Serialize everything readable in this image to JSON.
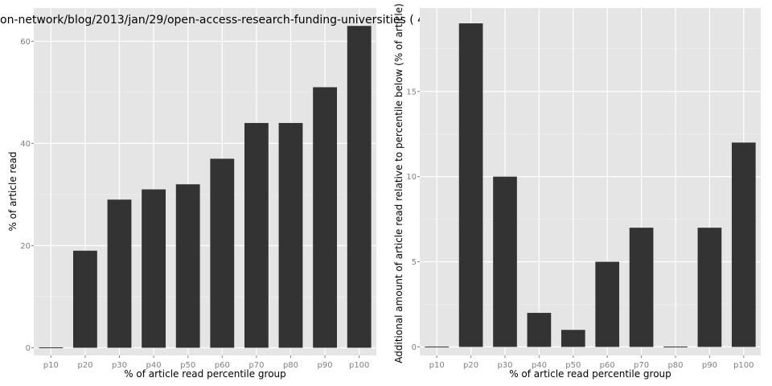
{
  "colors": {
    "panel": "#e5e5e5",
    "grid_major": "#ffffff",
    "grid_minor": "#f2f2f2",
    "bar": "#333333",
    "tick": "#7f7f7f"
  },
  "chart_data": [
    {
      "type": "bar",
      "title": "on-network/blog/2013/jan/29/open-access-research-funding-universities ( 4",
      "xlabel": "% of article read percentile group",
      "ylabel": "% of article read",
      "categories": [
        "p10",
        "p20",
        "p30",
        "p40",
        "p50",
        "p60",
        "p70",
        "p80",
        "p90",
        "p100"
      ],
      "values": [
        0,
        19,
        29,
        31,
        32,
        37,
        44,
        44,
        51,
        63
      ],
      "ylim": [
        -1.5,
        66.5
      ],
      "yticks": [
        0,
        20,
        40,
        60
      ],
      "ytick_labels": [
        "0",
        "20",
        "40",
        "60"
      ],
      "grid": true,
      "legend": "none"
    },
    {
      "type": "bar",
      "title": "",
      "xlabel": "% of article read percentile group",
      "ylabel": "Additional amount of article read relative to percentile below (% of article)",
      "categories": [
        "p10",
        "p20",
        "p30",
        "p40",
        "p50",
        "p60",
        "p70",
        "p80",
        "p90",
        "p100"
      ],
      "values": [
        0,
        19,
        10,
        2,
        1,
        5,
        7,
        0,
        7,
        12
      ],
      "ylim": [
        -0.5,
        19.9
      ],
      "yticks": [
        0,
        5,
        10,
        15
      ],
      "ytick_labels": [
        "0",
        "5",
        "10",
        "15"
      ],
      "grid": true,
      "legend": "none"
    }
  ]
}
